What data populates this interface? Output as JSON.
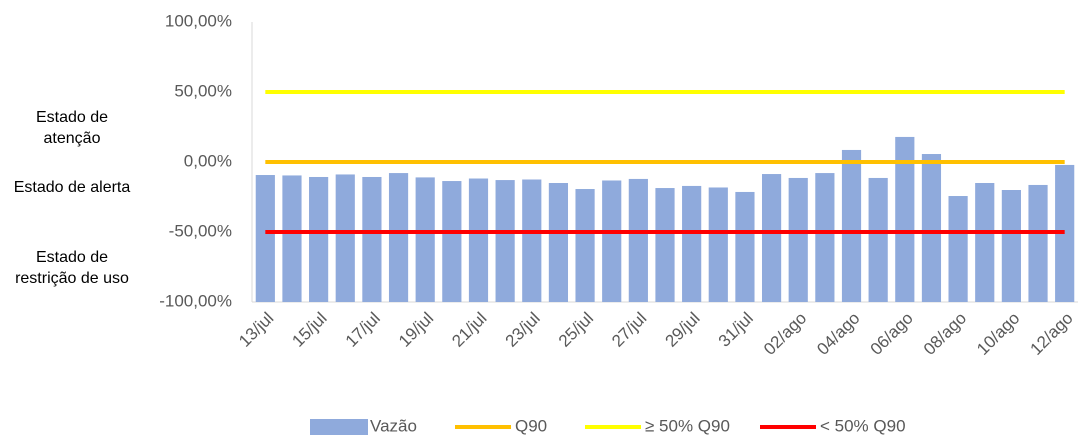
{
  "chart_data": {
    "type": "bar",
    "categories": [
      "13/jul",
      null,
      "15/jul",
      null,
      "17/jul",
      null,
      "19/jul",
      null,
      "21/jul",
      null,
      "23/jul",
      null,
      "25/jul",
      null,
      "27/jul",
      null,
      "29/jul",
      null,
      "31/jul",
      null,
      "02/ago",
      null,
      "04/ago",
      null,
      "06/ago",
      null,
      "08/ago",
      null,
      "10/ago",
      null,
      "12/ago"
    ],
    "series": [
      {
        "name": "Vazão",
        "type": "bar",
        "color": "#8faadc",
        "values": [
          -9.3,
          -9.6,
          -10.7,
          -8.9,
          -10.7,
          -7.9,
          -11,
          -13.6,
          -11.8,
          -12.9,
          -12.5,
          -15,
          -19.3,
          -13.2,
          -12.1,
          -18.6,
          -17.1,
          -18.2,
          -21.4,
          -8.6,
          -11.4,
          -7.9,
          8.6,
          -11.4,
          17.9,
          5.7,
          -24.3,
          -15,
          -20,
          -16.4,
          -2.1
        ]
      },
      {
        "name": "Q90",
        "type": "line",
        "color": "#ffc000",
        "values": [
          0,
          0,
          0,
          0,
          0,
          0,
          0,
          0,
          0,
          0,
          0,
          0,
          0,
          0,
          0,
          0,
          0,
          0,
          0,
          0,
          0,
          0,
          0,
          0,
          0,
          0,
          0,
          0,
          0,
          0,
          0
        ]
      },
      {
        "name": "≥ 50% Q90",
        "type": "line",
        "color": "#ffff00",
        "values": [
          50,
          50,
          50,
          50,
          50,
          50,
          50,
          50,
          50,
          50,
          50,
          50,
          50,
          50,
          50,
          50,
          50,
          50,
          50,
          50,
          50,
          50,
          50,
          50,
          50,
          50,
          50,
          50,
          50,
          50,
          50
        ]
      },
      {
        "name": "< 50% Q90",
        "type": "line",
        "color": "#ff0000",
        "values": [
          -50,
          -50,
          -50,
          -50,
          -50,
          -50,
          -50,
          -50,
          -50,
          -50,
          -50,
          -50,
          -50,
          -50,
          -50,
          -50,
          -50,
          -50,
          -50,
          -50,
          -50,
          -50,
          -50,
          -50,
          -50,
          -50,
          -50,
          -50,
          -50,
          -50,
          -50
        ]
      }
    ],
    "ylim": [
      -100,
      100
    ],
    "yticks": [
      {
        "value": -100,
        "label": "-100,00%"
      },
      {
        "value": -50,
        "label": "-50,00%"
      },
      {
        "value": 0,
        "label": "0,00%"
      },
      {
        "value": 50,
        "label": "50,00%"
      },
      {
        "value": 100,
        "label": "100,00%"
      }
    ],
    "annotations": [
      "Estado de atenção",
      "Estado de alerta",
      "Estado de restrição de uso"
    ],
    "legend": "bottom",
    "grid": false
  }
}
